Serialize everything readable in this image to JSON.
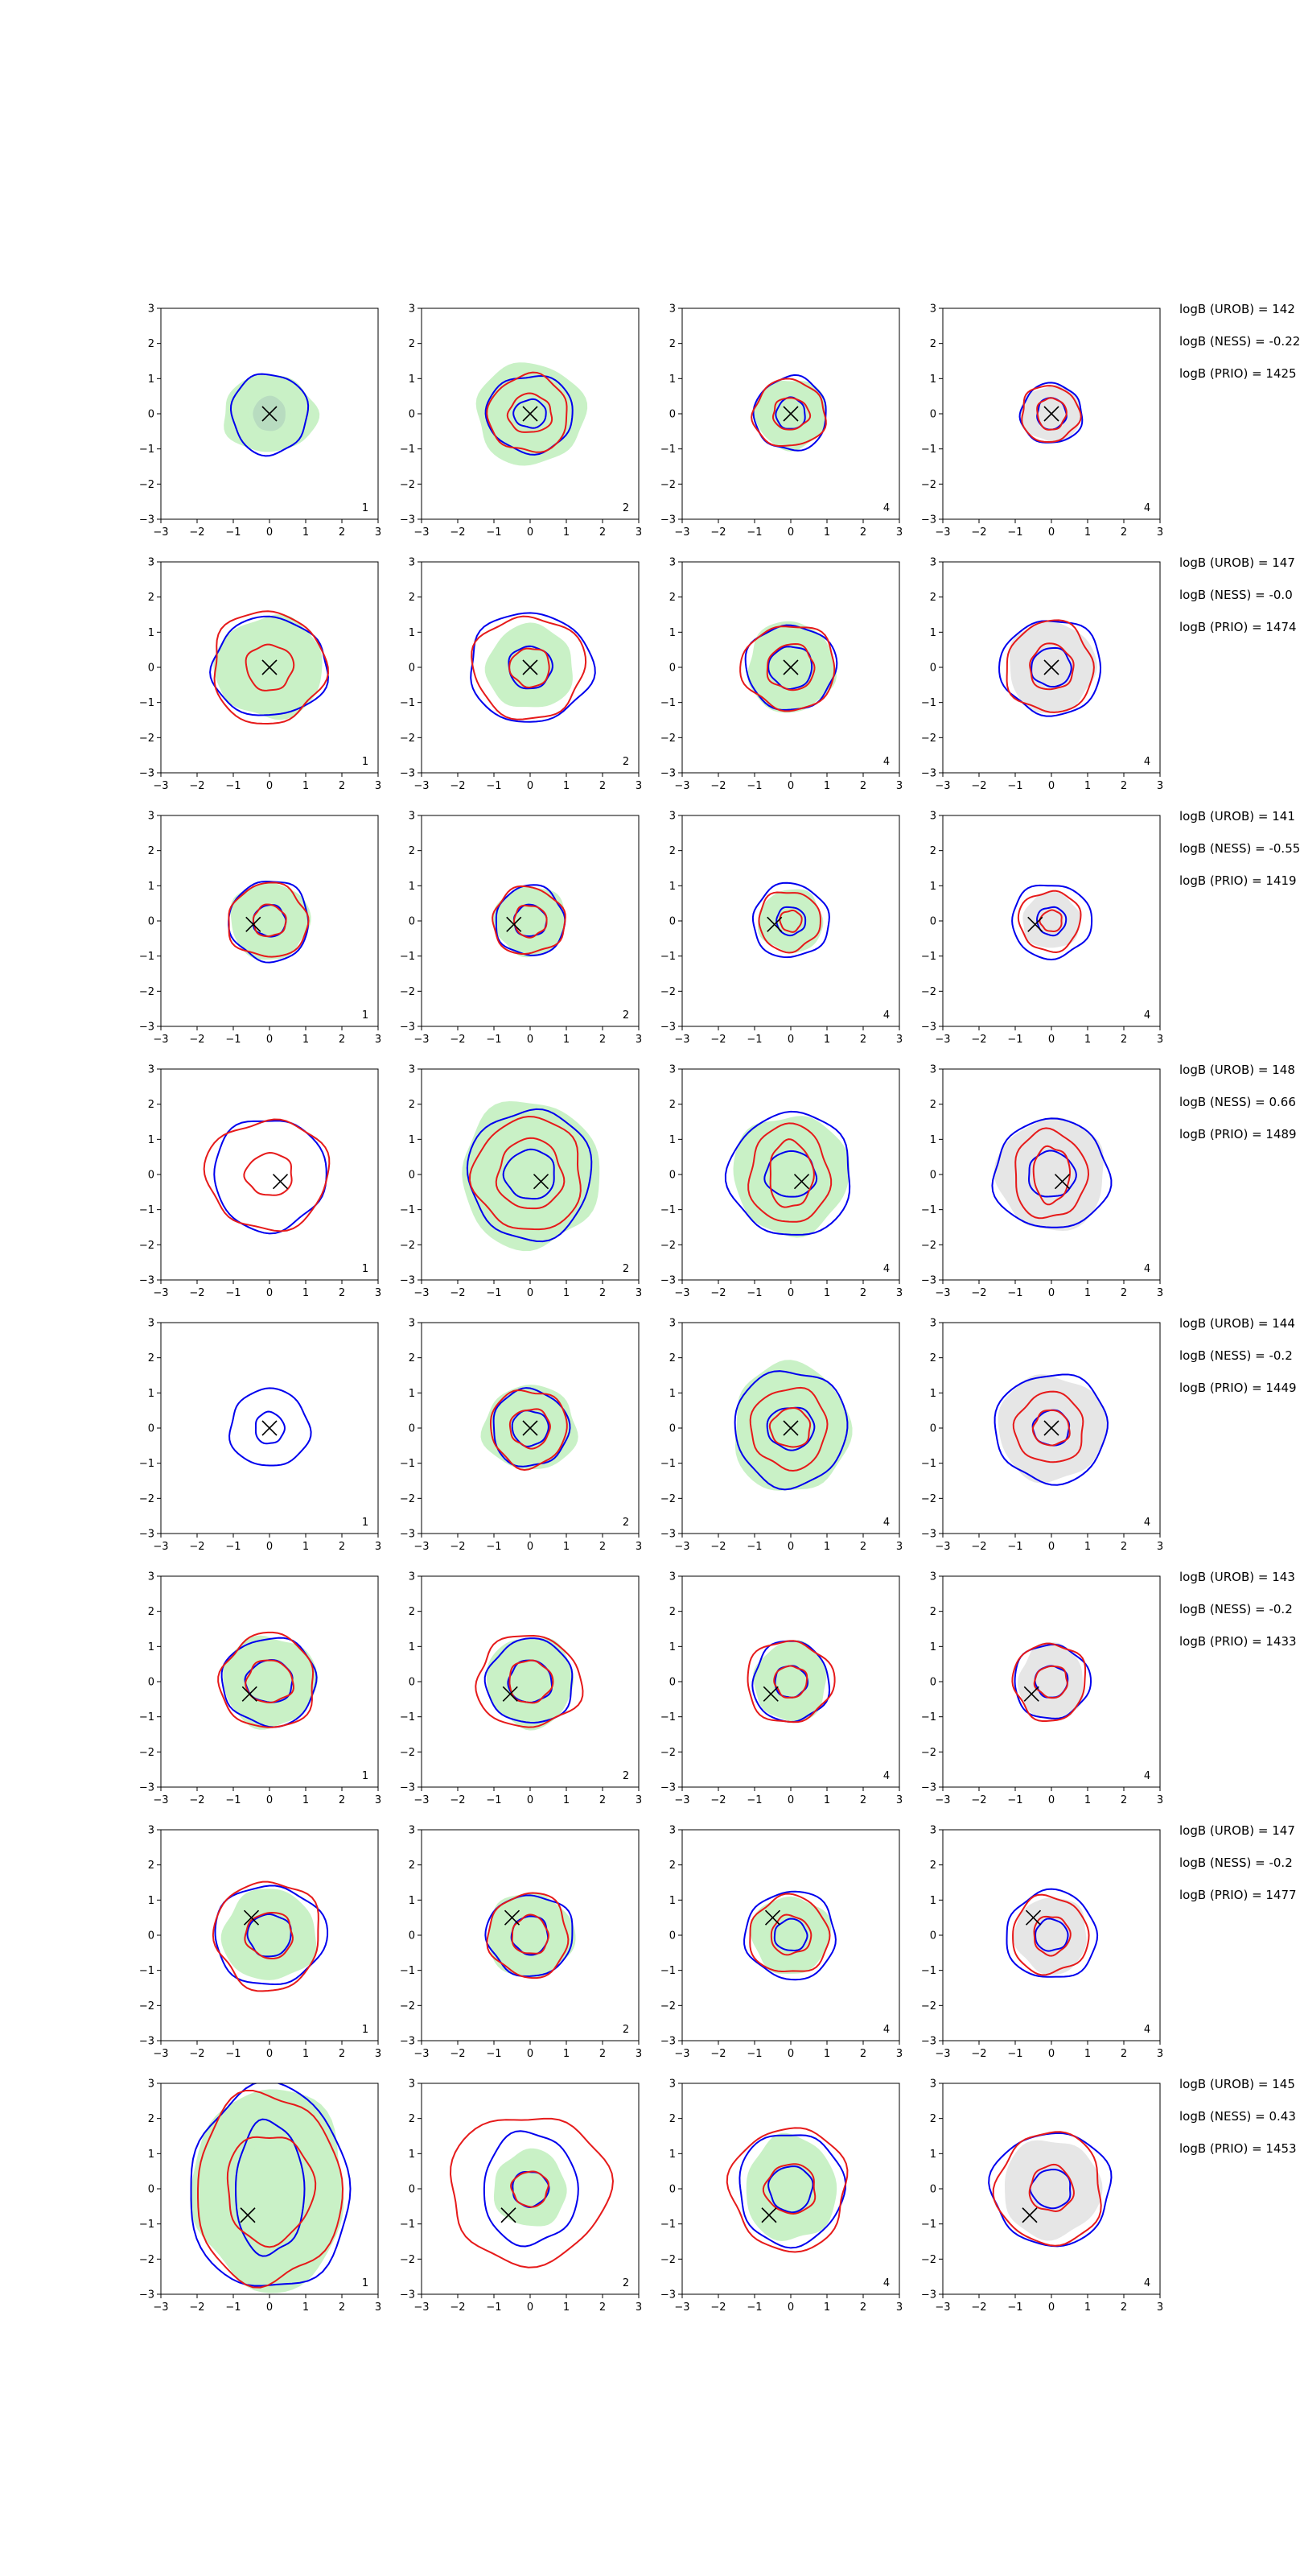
{
  "figure": {
    "background": "#ffffff",
    "colors": {
      "mass_green": "#c9f1c6",
      "mass_grey": "#e6e6e6",
      "contour_blue": "#0000ee",
      "contour_red": "#e61a1a",
      "marker": "#000000",
      "axis": "#000000"
    },
    "panel_markers": [
      "1",
      "2",
      "4",
      "4"
    ]
  },
  "chart_data": {
    "type": "grid-of-contour-plots",
    "rows": 8,
    "cols": 4,
    "xlim": [
      -3,
      3
    ],
    "ylim": [
      -3,
      3
    ],
    "xticks": [
      "−3",
      "−2",
      "−1",
      "0",
      "1",
      "2",
      "3"
    ],
    "yticks": [
      "−3",
      "−2",
      "−1",
      "0",
      "1",
      "2",
      "3"
    ],
    "grid": false,
    "row_annotations": [
      [
        "logB (UROB) = 142",
        "logB (NESS) = -0.22",
        "logB (PRIO) = 1425"
      ],
      [
        "logB (UROB) = 147",
        "logB (NESS) = -0.0",
        "logB (PRIO) = 1474"
      ],
      [
        "logB (UROB) = 141",
        "logB (NESS) = -0.55",
        "logB (PRIO) = 1419"
      ],
      [
        "logB (UROB) = 148",
        "logB (NESS) = 0.66",
        "logB (PRIO) = 1489"
      ],
      [
        "logB (UROB) = 144",
        "logB (NESS) = -0.2",
        "logB (PRIO) = 1449"
      ],
      [
        "logB (UROB) = 143",
        "logB (NESS) = -0.2",
        "logB (PRIO) = 1433"
      ],
      [
        "logB (UROB) = 147",
        "logB (NESS) = -0.2",
        "logB (PRIO) = 1477"
      ],
      [
        "logB (UROB) = 145",
        "logB (NESS) = 0.43",
        "logB (PRIO) = 1453"
      ]
    ],
    "true_point": [
      [
        0.0,
        0.0
      ],
      [
        0.0,
        0.0
      ],
      [
        -0.45,
        -0.1
      ],
      [
        0.3,
        -0.2
      ],
      [
        0.0,
        0.0
      ],
      [
        -0.55,
        -0.35
      ],
      [
        -0.5,
        0.5
      ],
      [
        -0.6,
        -0.75
      ]
    ],
    "rows_data": [
      {
        "fill": [
          [
            1.3,
            1.1
          ],
          [
            1.5,
            1.45
          ],
          [
            1.0,
            1.0
          ],
          [
            0.85,
            0.8
          ]
        ],
        "blue": [
          [
            [
              1.05,
              1.15
            ]
          ],
          [
            [
              1.2,
              1.1
            ],
            [
              0.45,
              0.4
            ]
          ],
          [
            [
              1.0,
              1.05
            ],
            [
              0.4,
              0.45
            ]
          ],
          [
            [
              0.85,
              0.85
            ],
            [
              0.4,
              0.45
            ]
          ]
        ],
        "red": [
          [],
          [
            [
              1.1,
              1.1
            ],
            [
              0.6,
              0.55
            ]
          ],
          [
            [
              1.0,
              0.95
            ],
            [
              0.5,
              0.45
            ]
          ],
          [
            [
              0.8,
              0.8
            ],
            [
              0.4,
              0.45
            ]
          ]
        ],
        "inner_blue": [
          [
            0.45,
            0.5
          ],
          null,
          null,
          null
        ]
      },
      {
        "fill": [
          [
            1.5,
            1.45
          ],
          [
            1.2,
            1.2
          ],
          [
            1.2,
            1.3
          ],
          [
            1.2,
            1.3
          ]
        ],
        "blue": [
          [
            [
              1.6,
              1.4
            ]
          ],
          [
            [
              1.7,
              1.55
            ],
            [
              0.6,
              0.6
            ]
          ],
          [
            [
              1.25,
              1.2
            ],
            [
              0.6,
              0.6
            ]
          ],
          [
            [
              1.4,
              1.35
            ],
            [
              0.55,
              0.55
            ]
          ]
        ],
        "red": [
          [
            [
              1.55,
              1.6
            ],
            [
              0.65,
              0.65
            ]
          ],
          [
            [
              1.55,
              1.45
            ],
            [
              0.55,
              0.55
            ]
          ],
          [
            [
              1.3,
              1.2
            ],
            [
              0.65,
              0.65
            ]
          ],
          [
            [
              1.2,
              1.3
            ],
            [
              0.6,
              0.65
            ]
          ]
        ],
        "inner_blue": [
          null,
          null,
          null,
          null
        ]
      },
      {
        "fill": [
          [
            1.1,
            1.1
          ],
          [
            1.0,
            1.0
          ],
          [
            0.9,
            0.9
          ],
          [
            0.8,
            0.8
          ]
        ],
        "blue": [
          [
            [
              1.1,
              1.15
            ],
            [
              0.45,
              0.45
            ]
          ],
          [
            [
              0.95,
              1.0
            ],
            [
              0.45,
              0.45
            ]
          ],
          [
            [
              1.05,
              1.05
            ],
            [
              0.4,
              0.4
            ]
          ],
          [
            [
              1.1,
              1.05
            ],
            [
              0.4,
              0.4
            ]
          ]
        ],
        "red": [
          [
            [
              1.1,
              1.05
            ],
            [
              0.45,
              0.45
            ]
          ],
          [
            [
              1.0,
              0.95
            ],
            [
              0.45,
              0.45
            ]
          ],
          [
            [
              0.85,
              0.85
            ],
            [
              0.3,
              0.3
            ]
          ],
          [
            [
              0.85,
              0.85
            ],
            [
              0.3,
              0.3
            ]
          ]
        ],
        "inner_blue": [
          null,
          null,
          null,
          null
        ]
      },
      {
        "fill": [
          [
            0,
            0
          ],
          [
            1.9,
            2.1
          ],
          [
            1.6,
            1.7
          ],
          [
            1.5,
            1.6
          ]
        ],
        "blue": [
          [
            [
              1.55,
              1.6
            ]
          ],
          [
            [
              1.7,
              1.85
            ],
            [
              0.7,
              0.7
            ]
          ],
          [
            [
              1.7,
              1.75
            ],
            [
              0.7,
              0.65
            ]
          ],
          [
            [
              1.6,
              1.55
            ],
            [
              0.65,
              0.65
            ]
          ]
        ],
        "red": [
          [
            [
              1.7,
              1.55
            ],
            [
              0.65,
              0.6
            ]
          ],
          [
            [
              1.5,
              1.6
            ],
            [
              0.9,
              1.0
            ]
          ],
          [
            [
              1.1,
              1.4
            ],
            [
              0.6,
              0.95
            ]
          ],
          [
            [
              1.0,
              1.25
            ],
            [
              0.5,
              0.8
            ]
          ]
        ],
        "inner_blue": [
          null,
          null,
          null,
          null
        ]
      },
      {
        "fill": [
          [
            0,
            0
          ],
          [
            1.3,
            1.2
          ],
          [
            1.6,
            1.85
          ],
          [
            1.5,
            1.5
          ]
        ],
        "blue": [
          [
            [
              1.1,
              1.1
            ],
            [
              0.4,
              0.45
            ]
          ],
          [
            [
              1.05,
              1.1
            ],
            [
              0.5,
              0.5
            ]
          ],
          [
            [
              1.55,
              1.65
            ],
            [
              0.65,
              0.6
            ]
          ],
          [
            [
              1.55,
              1.55
            ],
            [
              0.5,
              0.5
            ]
          ]
        ],
        "red": [
          [],
          [
            [
              1.05,
              1.1
            ],
            [
              0.55,
              0.55
            ]
          ],
          [
            [
              1.05,
              1.15
            ],
            [
              0.55,
              0.55
            ]
          ],
          [
            [
              0.95,
              1.0
            ],
            [
              0.5,
              0.5
            ]
          ]
        ],
        "inner_blue": [
          null,
          null,
          null,
          null
        ]
      },
      {
        "fill": [
          [
            1.3,
            1.3
          ],
          [
            1.2,
            1.3
          ],
          [
            1.0,
            1.15
          ],
          [
            0.9,
            1.1
          ]
        ],
        "blue": [
          [
            [
              1.3,
              1.25
            ],
            [
              0.65,
              0.6
            ]
          ],
          [
            [
              1.2,
              1.2
            ],
            [
              0.6,
              0.6
            ]
          ],
          [
            [
              1.05,
              1.15
            ],
            [
              0.45,
              0.45
            ]
          ],
          [
            [
              1.05,
              1.05
            ],
            [
              0.45,
              0.45
            ]
          ]
        ],
        "red": [
          [
            [
              1.3,
              1.35
            ],
            [
              0.65,
              0.6
            ]
          ],
          [
            [
              1.45,
              1.3
            ],
            [
              0.6,
              0.6
            ]
          ],
          [
            [
              1.2,
              1.15
            ],
            [
              0.45,
              0.45
            ]
          ],
          [
            [
              1.0,
              1.1
            ],
            [
              0.45,
              0.45
            ]
          ]
        ],
        "inner_blue": [
          null,
          null,
          null,
          null
        ]
      },
      {
        "fill": [
          [
            1.3,
            1.3
          ],
          [
            1.2,
            1.2
          ],
          [
            1.1,
            1.1
          ],
          [
            1.0,
            1.1
          ]
        ],
        "blue": [
          [
            [
              1.55,
              1.4
            ],
            [
              0.6,
              0.6
            ]
          ],
          [
            [
              1.2,
              1.15
            ],
            [
              0.5,
              0.55
            ]
          ],
          [
            [
              1.25,
              1.25
            ],
            [
              0.45,
              0.45
            ]
          ],
          [
            [
              1.25,
              1.25
            ],
            [
              0.45,
              0.45
            ]
          ]
        ],
        "red": [
          [
            [
              1.45,
              1.55
            ],
            [
              0.65,
              0.65
            ]
          ],
          [
            [
              1.1,
              1.2
            ],
            [
              0.5,
              0.55
            ]
          ],
          [
            [
              1.1,
              1.1
            ],
            [
              0.55,
              0.55
            ]
          ],
          [
            [
              1.05,
              1.1
            ],
            [
              0.5,
              0.55
            ]
          ]
        ],
        "inner_blue": [
          null,
          null,
          null,
          null
        ]
      },
      {
        "fill": [
          [
            2.1,
            2.9
          ],
          [
            1.0,
            1.1
          ],
          [
            1.25,
            1.5
          ],
          [
            1.35,
            1.4
          ]
        ],
        "blue": [
          [
            [
              2.2,
              2.9
            ],
            [
              0.95,
              1.9
            ]
          ],
          [
            [
              1.3,
              1.6
            ],
            [
              0.5,
              0.5
            ]
          ],
          [
            [
              1.45,
              1.6
            ],
            [
              0.6,
              0.65
            ]
          ],
          [
            [
              1.65,
              1.6
            ],
            [
              0.55,
              0.55
            ]
          ]
        ],
        "red": [
          [
            [
              2.0,
              2.7
            ],
            [
              1.2,
              1.55
            ]
          ],
          [
            [
              2.2,
              2.1
            ],
            [
              0.5,
              0.5
            ]
          ],
          [
            [
              1.6,
              1.75
            ],
            [
              0.7,
              0.7
            ]
          ],
          [
            [
              1.45,
              1.6
            ],
            [
              0.6,
              0.65
            ]
          ]
        ],
        "inner_blue": [
          null,
          null,
          null,
          null
        ]
      }
    ]
  }
}
